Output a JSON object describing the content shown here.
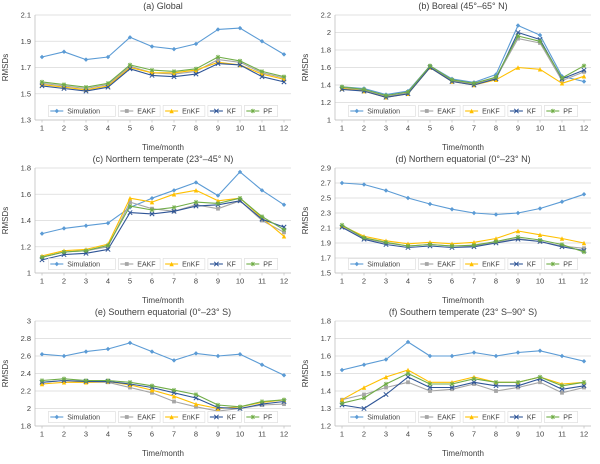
{
  "figure": {
    "background": "#FFFFFF",
    "text_color": "#404040",
    "grid_color": "#D9D9D9",
    "axis_color": "#BFBFBF",
    "x_label": "Time/month",
    "y_label": "RMSDs",
    "legend": [
      "Simulation",
      "EAKF",
      "EnKF",
      "KF",
      "PF"
    ],
    "colors": {
      "Simulation": "#5B9BD5",
      "EAKF": "#A6A6A6",
      "EnKF": "#FFC000",
      "KF": "#2F5597",
      "PF": "#70AD47"
    },
    "markers": {
      "Simulation": "diamond",
      "EAKF": "square",
      "EnKF": "triangle",
      "KF": "cross",
      "PF": "star"
    }
  },
  "chart_data": [
    {
      "type": "line",
      "title": "(a) Global",
      "xlabel": "Time/month",
      "ylabel": "RMSDs",
      "x": [
        1,
        2,
        3,
        4,
        5,
        6,
        7,
        8,
        9,
        10,
        11,
        12
      ],
      "ylim": [
        1.3,
        2.1
      ],
      "yticks": [
        1.3,
        1.5,
        1.7,
        1.9,
        2.1
      ],
      "ytick_labels": [
        "1.3",
        "1.5",
        "1.7",
        "1.9",
        "2.1"
      ],
      "series": [
        {
          "name": "Simulation",
          "values": [
            1.78,
            1.82,
            1.76,
            1.78,
            1.93,
            1.86,
            1.84,
            1.88,
            1.99,
            2.0,
            1.9,
            1.8
          ]
        },
        {
          "name": "EAKF",
          "values": [
            1.58,
            1.56,
            1.54,
            1.57,
            1.71,
            1.66,
            1.65,
            1.67,
            1.76,
            1.74,
            1.66,
            1.62
          ]
        },
        {
          "name": "EnKF",
          "values": [
            1.57,
            1.55,
            1.53,
            1.56,
            1.7,
            1.66,
            1.66,
            1.68,
            1.74,
            1.72,
            1.65,
            1.61
          ]
        },
        {
          "name": "KF",
          "values": [
            1.56,
            1.54,
            1.52,
            1.55,
            1.69,
            1.64,
            1.63,
            1.65,
            1.73,
            1.72,
            1.63,
            1.59
          ]
        },
        {
          "name": "PF",
          "values": [
            1.59,
            1.57,
            1.55,
            1.58,
            1.72,
            1.68,
            1.67,
            1.69,
            1.78,
            1.75,
            1.67,
            1.63
          ]
        }
      ]
    },
    {
      "type": "line",
      "title": "(b) Boreal (45°–65° N)",
      "xlabel": "Time/month",
      "ylabel": "RMSDs",
      "x": [
        1,
        2,
        3,
        4,
        5,
        6,
        7,
        8,
        9,
        10,
        11,
        12
      ],
      "ylim": [
        1,
        2.2
      ],
      "yticks": [
        1,
        1.2,
        1.4,
        1.6,
        1.8,
        2,
        2.2
      ],
      "ytick_labels": [
        "1",
        "1.2",
        "1.4",
        "1.6",
        "1.8",
        "2",
        "2.2"
      ],
      "series": [
        {
          "name": "Simulation",
          "values": [
            1.38,
            1.36,
            1.29,
            1.33,
            1.62,
            1.47,
            1.43,
            1.52,
            2.08,
            1.97,
            1.5,
            1.44
          ]
        },
        {
          "name": "EAKF",
          "values": [
            1.37,
            1.34,
            1.27,
            1.31,
            1.61,
            1.45,
            1.41,
            1.48,
            1.93,
            1.88,
            1.45,
            1.55
          ]
        },
        {
          "name": "EnKF",
          "values": [
            1.36,
            1.33,
            1.26,
            1.3,
            1.6,
            1.44,
            1.4,
            1.46,
            1.6,
            1.58,
            1.42,
            1.5
          ]
        },
        {
          "name": "KF",
          "values": [
            1.35,
            1.33,
            1.26,
            1.3,
            1.6,
            1.44,
            1.4,
            1.47,
            2.0,
            1.92,
            1.47,
            1.57
          ]
        },
        {
          "name": "PF",
          "values": [
            1.38,
            1.35,
            1.28,
            1.32,
            1.62,
            1.46,
            1.42,
            1.49,
            1.96,
            1.9,
            1.48,
            1.62
          ]
        }
      ]
    },
    {
      "type": "line",
      "title": "(c) Northern temperate (23°–45° N)",
      "xlabel": "Time/month",
      "ylabel": "RMSDs",
      "x": [
        1,
        2,
        3,
        4,
        5,
        6,
        7,
        8,
        9,
        10,
        11,
        12
      ],
      "ylim": [
        1,
        1.8
      ],
      "yticks": [
        1,
        1.2,
        1.4,
        1.6,
        1.8
      ],
      "ytick_labels": [
        "1",
        "1.2",
        "1.4",
        "1.6",
        "1.8"
      ],
      "series": [
        {
          "name": "Simulation",
          "values": [
            1.3,
            1.34,
            1.36,
            1.38,
            1.5,
            1.57,
            1.63,
            1.69,
            1.59,
            1.77,
            1.63,
            1.52
          ]
        },
        {
          "name": "EAKF",
          "values": [
            1.12,
            1.16,
            1.17,
            1.2,
            1.54,
            1.49,
            1.47,
            1.52,
            1.49,
            1.55,
            1.4,
            1.31
          ]
        },
        {
          "name": "EnKF",
          "values": [
            1.13,
            1.17,
            1.18,
            1.22,
            1.57,
            1.54,
            1.6,
            1.63,
            1.55,
            1.57,
            1.42,
            1.28
          ]
        },
        {
          "name": "KF",
          "values": [
            1.1,
            1.14,
            1.15,
            1.18,
            1.46,
            1.45,
            1.47,
            1.51,
            1.52,
            1.55,
            1.41,
            1.35
          ]
        },
        {
          "name": "PF",
          "values": [
            1.12,
            1.16,
            1.17,
            1.21,
            1.51,
            1.48,
            1.5,
            1.54,
            1.53,
            1.57,
            1.43,
            1.33
          ]
        }
      ]
    },
    {
      "type": "line",
      "title": "(d) Northern equatorial (0°–23° N)",
      "xlabel": "Time/month",
      "ylabel": "RMSDs",
      "x": [
        1,
        2,
        3,
        4,
        5,
        6,
        7,
        8,
        9,
        10,
        11,
        12
      ],
      "ylim": [
        1.5,
        2.9
      ],
      "yticks": [
        1.5,
        1.7,
        1.9,
        2.1,
        2.3,
        2.5,
        2.7,
        2.9
      ],
      "ytick_labels": [
        "1.5",
        "1.7",
        "1.9",
        "2.1",
        "2.3",
        "2.5",
        "2.7",
        "2.9"
      ],
      "series": [
        {
          "name": "Simulation",
          "values": [
            2.7,
            2.68,
            2.6,
            2.5,
            2.42,
            2.35,
            2.3,
            2.28,
            2.3,
            2.36,
            2.45,
            2.55
          ]
        },
        {
          "name": "EAKF",
          "values": [
            2.12,
            1.96,
            1.9,
            1.86,
            1.88,
            1.86,
            1.86,
            1.91,
            1.96,
            1.92,
            1.86,
            1.83
          ]
        },
        {
          "name": "EnKF",
          "values": [
            2.13,
            1.99,
            1.93,
            1.89,
            1.91,
            1.89,
            1.91,
            1.96,
            2.06,
            2.01,
            1.96,
            1.9
          ]
        },
        {
          "name": "KF",
          "values": [
            2.11,
            1.95,
            1.88,
            1.84,
            1.86,
            1.84,
            1.85,
            1.9,
            1.95,
            1.92,
            1.85,
            1.8
          ]
        },
        {
          "name": "PF",
          "values": [
            2.14,
            1.97,
            1.91,
            1.86,
            1.88,
            1.86,
            1.87,
            1.92,
            1.98,
            1.94,
            1.88,
            1.78
          ]
        }
      ]
    },
    {
      "type": "line",
      "title": "(e) Southern equatorial (0°–23° S)",
      "xlabel": "Time/month",
      "ylabel": "RMSDs",
      "x": [
        1,
        2,
        3,
        4,
        5,
        6,
        7,
        8,
        9,
        10,
        11,
        12
      ],
      "ylim": [
        1.8,
        3.0
      ],
      "yticks": [
        1.8,
        2,
        2.2,
        2.4,
        2.6,
        2.8,
        3
      ],
      "ytick_labels": [
        "1.8",
        "2",
        "2.2",
        "2.4",
        "2.6",
        "2.8",
        "3"
      ],
      "series": [
        {
          "name": "Simulation",
          "values": [
            2.62,
            2.6,
            2.65,
            2.68,
            2.75,
            2.65,
            2.55,
            2.63,
            2.6,
            2.62,
            2.5,
            2.38
          ]
        },
        {
          "name": "EAKF",
          "values": [
            2.3,
            2.32,
            2.3,
            2.3,
            2.24,
            2.18,
            2.08,
            2.02,
            1.97,
            2.0,
            2.04,
            2.05
          ]
        },
        {
          "name": "EnKF",
          "values": [
            2.28,
            2.3,
            2.3,
            2.31,
            2.27,
            2.21,
            2.14,
            2.05,
            2.0,
            2.02,
            2.07,
            2.1
          ]
        },
        {
          "name": "KF",
          "values": [
            2.3,
            2.32,
            2.31,
            2.31,
            2.28,
            2.24,
            2.18,
            2.12,
            2.01,
            2.0,
            2.05,
            2.08
          ]
        },
        {
          "name": "PF",
          "values": [
            2.32,
            2.34,
            2.32,
            2.32,
            2.3,
            2.26,
            2.21,
            2.16,
            2.04,
            2.02,
            2.08,
            2.1
          ]
        }
      ]
    },
    {
      "type": "line",
      "title": "(f) Southern temperate (23° S–90° S)",
      "xlabel": "Time/month",
      "ylabel": "RMSDs",
      "x": [
        1,
        2,
        3,
        4,
        5,
        6,
        7,
        8,
        9,
        10,
        11,
        12
      ],
      "ylim": [
        1.2,
        1.8
      ],
      "yticks": [
        1.2,
        1.3,
        1.4,
        1.5,
        1.6,
        1.7,
        1.8
      ],
      "ytick_labels": [
        "1.2",
        "1.3",
        "1.4",
        "1.5",
        "1.6",
        "1.7",
        "1.8"
      ],
      "series": [
        {
          "name": "Simulation",
          "values": [
            1.52,
            1.55,
            1.58,
            1.68,
            1.6,
            1.6,
            1.62,
            1.6,
            1.62,
            1.63,
            1.6,
            1.57
          ]
        },
        {
          "name": "EAKF",
          "values": [
            1.35,
            1.38,
            1.42,
            1.45,
            1.4,
            1.41,
            1.44,
            1.4,
            1.42,
            1.45,
            1.39,
            1.42
          ]
        },
        {
          "name": "EnKF",
          "values": [
            1.35,
            1.42,
            1.48,
            1.52,
            1.45,
            1.45,
            1.48,
            1.45,
            1.45,
            1.48,
            1.44,
            1.45
          ]
        },
        {
          "name": "KF",
          "values": [
            1.32,
            1.3,
            1.38,
            1.48,
            1.42,
            1.42,
            1.45,
            1.43,
            1.43,
            1.47,
            1.41,
            1.43
          ]
        },
        {
          "name": "PF",
          "values": [
            1.33,
            1.36,
            1.44,
            1.5,
            1.44,
            1.44,
            1.47,
            1.45,
            1.45,
            1.48,
            1.43,
            1.45
          ]
        }
      ]
    }
  ]
}
